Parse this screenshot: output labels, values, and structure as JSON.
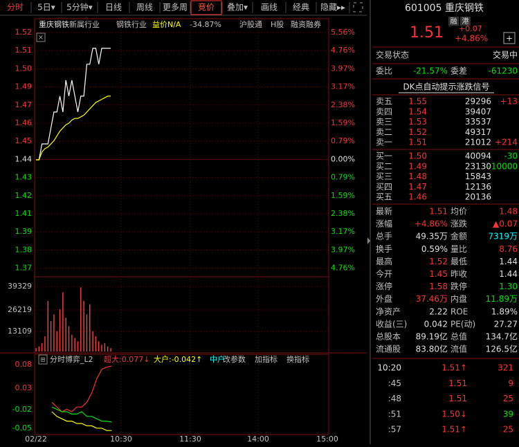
{
  "toolbar": {
    "tabs": [
      "分时",
      "5日▾",
      "5分钟▾",
      "日线",
      "周线",
      "更多周",
      "竞价",
      "叠加▾",
      "画线",
      "经典",
      "隐藏▸▸"
    ]
  },
  "chart_header": {
    "name": "重庆钢铁",
    "items": [
      "新属行业",
      "钢铁行业",
      "益价N/A",
      "-34.87%"
    ],
    "right": [
      "沪股通",
      "H股",
      "融资融券"
    ]
  },
  "price_axis": {
    "left": [
      "1.52",
      "1.51",
      "1.50",
      "1.49",
      "1.47",
      "1.46",
      "1.45",
      "1.44",
      "1.43",
      "1.42",
      "1.41",
      "1.39",
      "1.38",
      "1.37"
    ],
    "right": [
      "5.56%",
      "4.76%",
      "3.97%",
      "3.17%",
      "2.38%",
      "1.59%",
      "0.79%",
      "0.00%",
      "0.79%",
      "1.59%",
      "2.38%",
      "3.17%",
      "3.97%",
      "4.76%"
    ]
  },
  "volume_axis": [
    "39329",
    "26219",
    "13109"
  ],
  "indicator": {
    "name": "分时博弈_L2",
    "items": [
      "超大:0.077↓",
      "大户:-0.042↑",
      "中户"
    ],
    "buttons": [
      "改参数",
      "加指标",
      "换指标"
    ],
    "axis": [
      "0.08",
      "0.03",
      "-0.02",
      "-0.05"
    ]
  },
  "time_axis": [
    "02/22",
    "10:30",
    "11:30",
    "14:00",
    "15:00"
  ],
  "chart": {
    "prev_close": 1.44,
    "price": [
      1.44,
      1.44,
      1.45,
      1.45,
      1.45,
      1.46,
      1.47,
      1.47,
      1.48,
      1.47,
      1.49,
      1.48,
      1.49,
      1.48,
      1.47,
      1.48,
      1.48,
      1.5,
      1.5,
      1.51,
      1.51,
      1.5,
      1.51,
      1.51,
      1.51,
      1.51
    ],
    "avg": [
      1.44,
      1.44,
      1.445,
      1.447,
      1.448,
      1.45,
      1.452,
      1.455,
      1.458,
      1.46,
      1.462,
      1.463,
      1.465,
      1.466,
      1.466,
      1.467,
      1.468,
      1.47,
      1.472,
      1.474,
      1.476,
      1.477,
      1.478,
      1.479,
      1.48,
      1.48
    ],
    "volume_max": 39329,
    "volume": [
      2000,
      3000,
      5000,
      9000,
      30000,
      18000,
      22000,
      12000,
      25000,
      35000,
      20000,
      15000,
      10000,
      8000,
      6000,
      38000,
      30000,
      22000,
      28000,
      12000,
      9000,
      6000,
      4000,
      5000,
      3000,
      2000
    ],
    "indicator_series": [
      {
        "color": "#ff3030",
        "values": [
          0.0,
          -0.01,
          -0.02,
          -0.015,
          -0.02,
          -0.01,
          -0.01,
          0.0,
          0.02,
          0.05,
          0.07,
          0.075,
          0.077
        ]
      },
      {
        "color": "#ffff00",
        "values": [
          -0.02,
          -0.03,
          -0.035,
          -0.04,
          -0.04,
          -0.045,
          -0.045,
          -0.05,
          -0.05,
          -0.055,
          -0.055,
          -0.06,
          -0.06
        ]
      },
      {
        "color": "#00e600",
        "values": [
          -0.01,
          -0.015,
          -0.02,
          -0.02,
          -0.025,
          -0.025,
          -0.02,
          -0.03,
          -0.03,
          -0.035,
          -0.04,
          -0.04,
          -0.042
        ]
      }
    ]
  },
  "quote": {
    "code": "601005 重庆钢铁",
    "badges": [
      "融",
      "港"
    ],
    "price": "1.51",
    "change": "+0.07",
    "pct": "+4.86%",
    "status": [
      "交易状态",
      "交易中"
    ],
    "ratio": [
      "委比",
      "-21.57%",
      "委差",
      "-61230"
    ],
    "signal": "DK点自动提示涨跌信号",
    "sell": [
      [
        "卖五",
        "1.55",
        "29296",
        "+13"
      ],
      [
        "卖四",
        "1.54",
        "39407",
        ""
      ],
      [
        "卖三",
        "1.53",
        "33537",
        ""
      ],
      [
        "卖二",
        "1.52",
        "49317",
        ""
      ],
      [
        "卖一",
        "1.51",
        "21012",
        "+214"
      ]
    ],
    "buy": [
      [
        "买一",
        "1.50",
        "40094",
        "-30"
      ],
      [
        "买二",
        "1.49",
        "23130",
        "-10000"
      ],
      [
        "买三",
        "1.48",
        "15843",
        ""
      ],
      [
        "买四",
        "1.47",
        "12136",
        ""
      ],
      [
        "买五",
        "1.46",
        "20136",
        ""
      ]
    ],
    "stats": [
      [
        "最新",
        "1.51",
        "均价",
        "1.48"
      ],
      [
        "涨幅",
        "+4.86%",
        "涨跌",
        "▲0.07"
      ],
      [
        "总手",
        "49.35万",
        "金额",
        "7319万"
      ],
      [
        "换手",
        "0.59%",
        "量比",
        "8.76"
      ],
      [
        "最高",
        "1.52",
        "最低",
        "1.44"
      ],
      [
        "今开",
        "1.45",
        "昨收",
        "1.44"
      ],
      [
        "涨停",
        "1.58",
        "跌停",
        "1.30"
      ],
      [
        "外盘",
        "37.46万",
        "内盘",
        "11.89万"
      ],
      [
        "净资产",
        "2.22",
        "ROE",
        "1.89%"
      ],
      [
        "收益(三)",
        "0.042",
        "PE(动)",
        "27.27"
      ],
      [
        "总股本",
        "89.19亿",
        "总值",
        "134.7亿"
      ],
      [
        "流通股",
        "83.80亿",
        "流值",
        "126.5亿"
      ]
    ],
    "ticks": [
      [
        "10:20",
        "1.51↑",
        "321"
      ],
      [
        ":45",
        "1.51",
        "9"
      ],
      [
        ":48",
        "1.51",
        "25"
      ],
      [
        ":51",
        "1.50↓",
        "39"
      ],
      [
        ":57",
        "1.51↑",
        "25"
      ]
    ]
  }
}
